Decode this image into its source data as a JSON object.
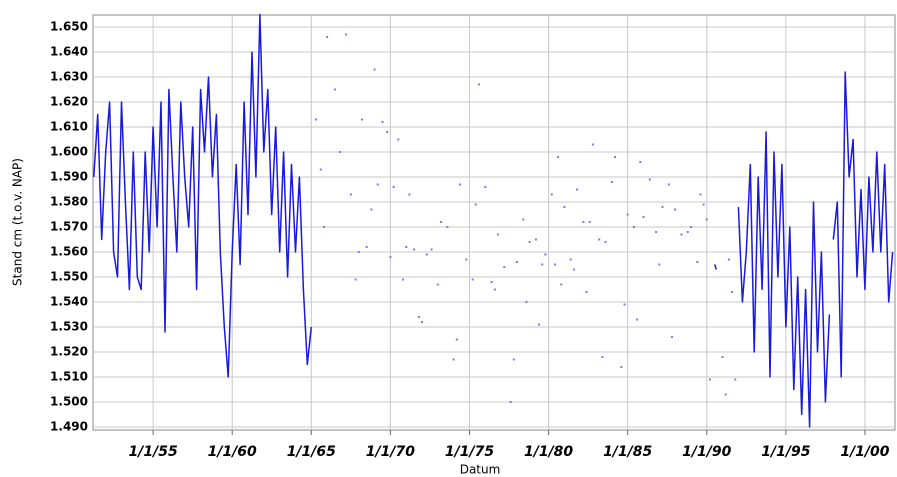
{
  "chart_data": {
    "type": "line",
    "x_label": "Datum",
    "y_label": "Stand cm (t.o.v. NAP)",
    "xlim": [
      1951.2,
      2001.9
    ],
    "ylim": [
      1488.8,
      1654.8
    ],
    "grid": true,
    "xticks": [
      {
        "value": 1955,
        "label": "1/1/55"
      },
      {
        "value": 1960,
        "label": "1/1/60"
      },
      {
        "value": 1965,
        "label": "1/1/65"
      },
      {
        "value": 1970,
        "label": "1/1/70"
      },
      {
        "value": 1975,
        "label": "1/1/75"
      },
      {
        "value": 1980,
        "label": "1/1/80"
      },
      {
        "value": 1985,
        "label": "1/1/85"
      },
      {
        "value": 1990,
        "label": "1/1/90"
      },
      {
        "value": 1995,
        "label": "1/1/95"
      },
      {
        "value": 2000,
        "label": "1/1/00"
      }
    ],
    "yticks": [
      {
        "value": 1490,
        "label": "1.490"
      },
      {
        "value": 1500,
        "label": "1.500"
      },
      {
        "value": 1510,
        "label": "1.510"
      },
      {
        "value": 1520,
        "label": "1.520"
      },
      {
        "value": 1530,
        "label": "1.530"
      },
      {
        "value": 1540,
        "label": "1.540"
      },
      {
        "value": 1550,
        "label": "1.550"
      },
      {
        "value": 1560,
        "label": "1.560"
      },
      {
        "value": 1570,
        "label": "1.570"
      },
      {
        "value": 1580,
        "label": "1.580"
      },
      {
        "value": 1590,
        "label": "1.590"
      },
      {
        "value": 1600,
        "label": "1.600"
      },
      {
        "value": 1610,
        "label": "1.610"
      },
      {
        "value": 1620,
        "label": "1.620"
      },
      {
        "value": 1630,
        "label": "1.630"
      },
      {
        "value": 1640,
        "label": "1.640"
      },
      {
        "value": 1650,
        "label": "1.650"
      }
    ],
    "series": [
      {
        "mode": "line",
        "color": "#1a1adc",
        "x": [
          1951.25,
          1951.5,
          1951.75,
          1952.0,
          1952.25,
          1952.5,
          1952.75,
          1953.0,
          1953.25,
          1953.5,
          1953.75,
          1954.0,
          1954.25,
          1954.5,
          1954.75,
          1955.0,
          1955.25,
          1955.5,
          1955.75,
          1956.0,
          1956.25,
          1956.5,
          1956.75,
          1957.0,
          1957.25,
          1957.5,
          1957.75,
          1958.0,
          1958.25,
          1958.5,
          1958.75,
          1959.0,
          1959.25,
          1959.5,
          1959.75,
          1960.0,
          1960.25,
          1960.5,
          1960.75,
          1961.0,
          1961.25,
          1961.5,
          1961.75,
          1962.0,
          1962.25,
          1962.5,
          1962.75,
          1963.0,
          1963.25,
          1963.5,
          1963.75,
          1964.0,
          1964.25,
          1964.5,
          1964.75,
          1965.0,
          1977.0,
          1990.5,
          1990.6,
          1991.5,
          1992.0,
          1992.25,
          1992.5,
          1992.75,
          1993.0,
          1993.25,
          1993.5,
          1993.75,
          1994.0,
          1994.25,
          1994.5,
          1994.75,
          1995.0,
          1995.25,
          1995.5,
          1995.75,
          1996.0,
          1996.25,
          1996.5,
          1996.75,
          1997.0,
          1997.25,
          1997.5,
          1997.75,
          1997.9,
          1998.0,
          1998.25,
          1998.5,
          1998.75,
          1999.0,
          1999.25,
          1999.5,
          1999.75,
          2000.0,
          2000.25,
          2000.5,
          2000.75,
          2001.0,
          2001.25,
          2001.5,
          2001.75
        ],
        "values": [
          1590,
          1615,
          1565,
          1600,
          1620,
          1560,
          1550,
          1620,
          1580,
          1545,
          1600,
          1550,
          1545,
          1600,
          1560,
          1610,
          1570,
          1620,
          1528,
          1625,
          1590,
          1560,
          1620,
          1590,
          1570,
          1610,
          1545,
          1625,
          1600,
          1630,
          1590,
          1615,
          1560,
          1530,
          1510,
          1560,
          1595,
          1555,
          1620,
          1575,
          1640,
          1590,
          1655,
          1600,
          1625,
          1575,
          1610,
          1560,
          1600,
          1550,
          1595,
          1560,
          1590,
          1545,
          1515,
          1530,
          null,
          1555,
          1553,
          null,
          1578,
          1540,
          1560,
          1595,
          1520,
          1590,
          1545,
          1608,
          1510,
          1600,
          1550,
          1595,
          1530,
          1570,
          1505,
          1550,
          1495,
          1545,
          1490,
          1580,
          1520,
          1560,
          1500,
          1535,
          null,
          1565,
          1580,
          1510,
          1632,
          1590,
          1605,
          1550,
          1585,
          1545,
          1590,
          1560,
          1600,
          1560,
          1595,
          1540,
          1560
        ]
      },
      {
        "mode": "markers",
        "color": "#7a7af0",
        "x": [
          1965.3,
          1965.6,
          1965.8,
          1966.0,
          1966.5,
          1966.8,
          1967.2,
          1967.5,
          1967.8,
          1968.0,
          1968.2,
          1968.5,
          1968.8,
          1969.0,
          1969.2,
          1969.5,
          1969.8,
          1970.0,
          1970.2,
          1970.5,
          1970.8,
          1971.0,
          1971.2,
          1971.5,
          1971.8,
          1972.0,
          1972.3,
          1972.6,
          1973.0,
          1973.2,
          1973.6,
          1974.0,
          1974.2,
          1974.4,
          1974.8,
          1975.2,
          1975.4,
          1975.6,
          1976.0,
          1976.4,
          1976.6,
          1976.8,
          1977.2,
          1977.6,
          1977.8,
          1978.0,
          1978.4,
          1978.6,
          1978.8,
          1979.2,
          1979.4,
          1979.6,
          1979.8,
          1980.2,
          1980.4,
          1980.6,
          1980.8,
          1981.0,
          1981.4,
          1981.6,
          1981.8,
          1982.2,
          1982.4,
          1982.6,
          1982.8,
          1983.2,
          1983.4,
          1983.6,
          1984.0,
          1984.2,
          1984.6,
          1984.8,
          1985.0,
          1985.4,
          1985.6,
          1985.8,
          1986.0,
          1986.4,
          1986.8,
          1987.0,
          1987.2,
          1987.6,
          1987.8,
          1988.0,
          1988.4,
          1988.8,
          1989.0,
          1989.4,
          1989.6,
          1989.8,
          1990.0,
          1990.2,
          1991.0,
          1991.2,
          1991.4,
          1991.6,
          1991.8
        ],
        "values": [
          1613,
          1593,
          1570,
          1646,
          1625,
          1600,
          1647,
          1583,
          1549,
          1560,
          1613,
          1562,
          1577,
          1633,
          1587,
          1612,
          1608,
          1558,
          1586,
          1605,
          1549,
          1562,
          1583,
          1561,
          1534,
          1532,
          1559,
          1561,
          1547,
          1572,
          1570,
          1517,
          1525,
          1587,
          1557,
          1549,
          1579,
          1627,
          1586,
          1548,
          1545,
          1567,
          1554,
          1500,
          1517,
          1556,
          1573,
          1540,
          1564,
          1565,
          1531,
          1555,
          1559,
          1583,
          1555,
          1598,
          1547,
          1578,
          1557,
          1553,
          1585,
          1572,
          1544,
          1572,
          1603,
          1565,
          1518,
          1564,
          1588,
          1598,
          1514,
          1539,
          1575,
          1570,
          1533,
          1596,
          1574,
          1589,
          1568,
          1555,
          1578,
          1587,
          1526,
          1577,
          1567,
          1568,
          1570,
          1556,
          1583,
          1579,
          1573,
          1509,
          1518,
          1503,
          1557,
          1544,
          1509
        ]
      }
    ]
  }
}
